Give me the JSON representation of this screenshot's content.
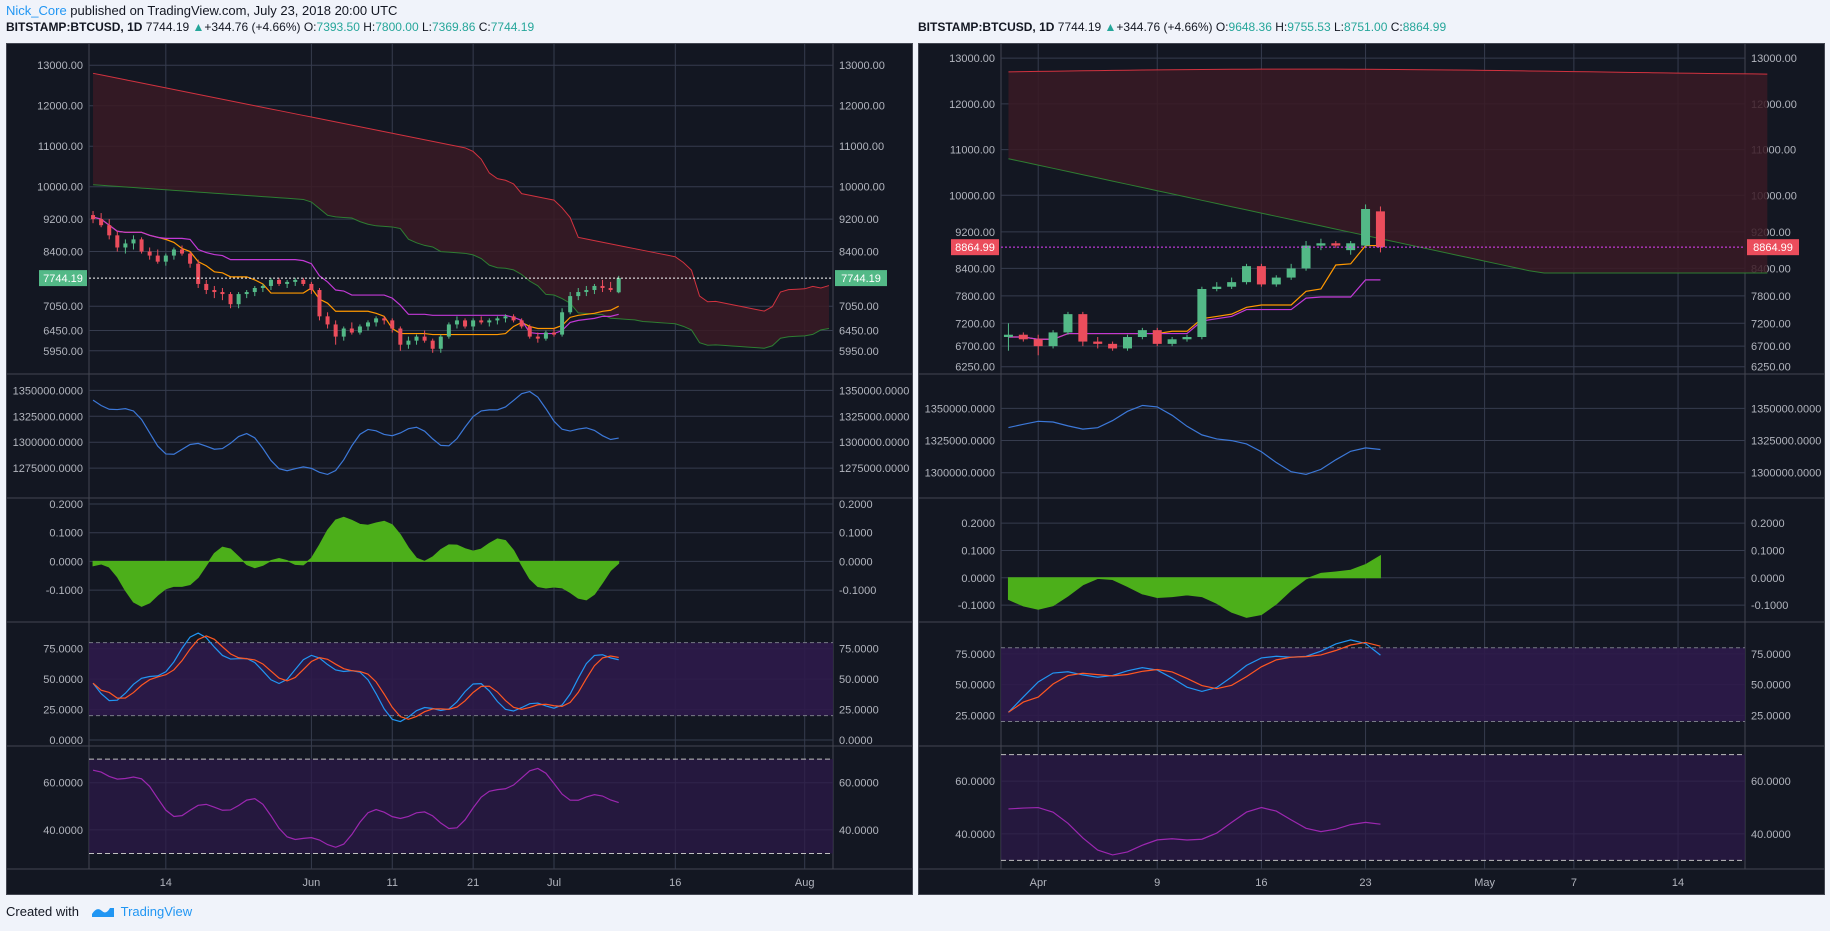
{
  "publish": {
    "user": "Nick_Core",
    "text": " published on TradingView.com, July 23, 2018 20:00 UTC"
  },
  "footer": {
    "created": "Created with",
    "brand": "TradingView"
  },
  "left_header": {
    "symbol": "BITSTAMP:BTCUSD, 1D",
    "last": "7744.19",
    "change": "+344.76 (+4.66%)",
    "o": "7393.50",
    "h": "7800.00",
    "l": "7369.86",
    "c": "7744.19"
  },
  "right_header": {
    "symbol": "BITSTAMP:BTCUSD, 1D",
    "last": "7744.19",
    "change": "+344.76 (+4.66%)",
    "o": "9648.36",
    "h": "9755.53",
    "l": "8751.00",
    "c": "8864.99"
  },
  "labels": {
    "O": "O:",
    "H": "H:",
    "L": "L:",
    "C": "C:"
  },
  "colors": {
    "up": "#53b987",
    "down": "#eb4d5c",
    "bg": "#131722",
    "grid": "#363c4e",
    "cloud": "#3a1a24",
    "tenkan": "#ff9800",
    "kijun": "#c239d6",
    "obv": "#3c78d8",
    "ao": "#4caf1a",
    "stoch_k": "#2196f3",
    "stoch_d": "#ff5722",
    "rsi": "#9c27b0",
    "band": "#2e1a4a"
  },
  "chart_data": [
    {
      "type": "candlestick",
      "id": "left",
      "price_label": "7744.19",
      "x_ticks": [
        {
          "label": "14",
          "t": 9
        },
        {
          "label": "Jun",
          "t": 27
        },
        {
          "label": "11",
          "t": 37
        },
        {
          "label": "21",
          "t": 47
        },
        {
          "label": "Jul",
          "t": 57
        },
        {
          "label": "16",
          "t": 72
        },
        {
          "label": "Aug",
          "t": 88
        }
      ],
      "price_ticks": [
        "13000.00",
        "12000.00",
        "11000.00",
        "10000.00",
        "9200.00",
        "8400.00",
        "7050.00",
        "6450.00",
        "5950.00"
      ],
      "price_ylim": [
        5500,
        13400
      ],
      "candles": [
        [
          9300,
          9400,
          9100,
          9200
        ],
        [
          9200,
          9350,
          9000,
          9050
        ],
        [
          9050,
          9200,
          8700,
          8800
        ],
        [
          8800,
          8900,
          8400,
          8500
        ],
        [
          8500,
          8700,
          8350,
          8600
        ],
        [
          8600,
          8800,
          8450,
          8700
        ],
        [
          8700,
          8750,
          8350,
          8400
        ],
        [
          8400,
          8500,
          8200,
          8300
        ],
        [
          8300,
          8450,
          8100,
          8150
        ],
        [
          8150,
          8350,
          8050,
          8300
        ],
        [
          8300,
          8500,
          8200,
          8450
        ],
        [
          8450,
          8550,
          8300,
          8350
        ],
        [
          8350,
          8400,
          8000,
          8100
        ],
        [
          8100,
          8200,
          7500,
          7600
        ],
        [
          7600,
          7700,
          7350,
          7450
        ],
        [
          7450,
          7550,
          7250,
          7400
        ],
        [
          7400,
          7500,
          7200,
          7350
        ],
        [
          7350,
          7400,
          7000,
          7100
        ],
        [
          7100,
          7400,
          7000,
          7350
        ],
        [
          7350,
          7450,
          7250,
          7400
        ],
        [
          7400,
          7550,
          7300,
          7500
        ],
        [
          7500,
          7600,
          7400,
          7550
        ],
        [
          7550,
          7750,
          7450,
          7700
        ],
        [
          7700,
          7750,
          7550,
          7600
        ],
        [
          7600,
          7700,
          7500,
          7650
        ],
        [
          7650,
          7750,
          7550,
          7700
        ],
        [
          7700,
          7750,
          7550,
          7600
        ],
        [
          7600,
          7650,
          7350,
          7450
        ],
        [
          7450,
          7500,
          6700,
          6800
        ],
        [
          6800,
          6900,
          6500,
          6600
        ],
        [
          6600,
          6700,
          6100,
          6300
        ],
        [
          6300,
          6550,
          6200,
          6500
        ],
        [
          6500,
          6650,
          6350,
          6400
        ],
        [
          6400,
          6600,
          6350,
          6550
        ],
        [
          6550,
          6700,
          6450,
          6650
        ],
        [
          6650,
          6800,
          6550,
          6750
        ],
        [
          6750,
          6800,
          6600,
          6700
        ],
        [
          6700,
          6750,
          6400,
          6500
        ],
        [
          6500,
          6550,
          5950,
          6100
        ],
        [
          6100,
          6300,
          6000,
          6200
        ],
        [
          6200,
          6350,
          6100,
          6300
        ],
        [
          6300,
          6450,
          6150,
          6200
        ],
        [
          6200,
          6250,
          5900,
          6000
        ],
        [
          6000,
          6350,
          5900,
          6300
        ],
        [
          6300,
          6650,
          6250,
          6600
        ],
        [
          6600,
          6800,
          6500,
          6700
        ],
        [
          6700,
          6750,
          6500,
          6550
        ],
        [
          6550,
          6750,
          6450,
          6700
        ],
        [
          6700,
          6800,
          6600,
          6650
        ],
        [
          6650,
          6750,
          6550,
          6700
        ],
        [
          6700,
          6800,
          6600,
          6750
        ],
        [
          6750,
          6850,
          6650,
          6800
        ],
        [
          6800,
          6850,
          6650,
          6700
        ],
        [
          6700,
          6750,
          6500,
          6550
        ],
        [
          6550,
          6600,
          6250,
          6300
        ],
        [
          6300,
          6400,
          6150,
          6250
        ],
        [
          6250,
          6450,
          6200,
          6400
        ],
        [
          6400,
          6500,
          6300,
          6350
        ],
        [
          6350,
          7000,
          6300,
          6900
        ],
        [
          6900,
          7400,
          6850,
          7300
        ],
        [
          7300,
          7500,
          7200,
          7400
        ],
        [
          7400,
          7550,
          7300,
          7450
        ],
        [
          7450,
          7600,
          7350,
          7550
        ],
        [
          7550,
          7700,
          7400,
          7500
        ],
        [
          7500,
          7650,
          7400,
          7450
        ],
        [
          7393.5,
          7800,
          7369.86,
          7744.19
        ]
      ],
      "first_candle_t": 0
    },
    {
      "type": "candlestick",
      "id": "right",
      "price_label": "8864.99",
      "x_ticks": [
        {
          "label": "Apr",
          "t": 2
        },
        {
          "label": "9",
          "t": 10
        },
        {
          "label": "16",
          "t": 17
        },
        {
          "label": "23",
          "t": 24
        },
        {
          "label": "May",
          "t": 32
        },
        {
          "label": "7",
          "t": 38
        },
        {
          "label": "14",
          "t": 45
        }
      ],
      "price_ticks": [
        "13000.00",
        "12000.00",
        "11000.00",
        "10000.00",
        "9200.00",
        "8400.00",
        "7800.00",
        "7200.00",
        "6700.00",
        "6250.00"
      ],
      "price_ylim": [
        6200,
        13200
      ],
      "candles": [
        [
          6900,
          7200,
          6600,
          6950
        ],
        [
          6950,
          7000,
          6800,
          6850
        ],
        [
          6850,
          6950,
          6500,
          6700
        ],
        [
          6700,
          7050,
          6650,
          7000
        ],
        [
          7000,
          7450,
          6950,
          7400
        ],
        [
          7400,
          7450,
          6700,
          6800
        ],
        [
          6800,
          6900,
          6650,
          6750
        ],
        [
          6750,
          6800,
          6600,
          6650
        ],
        [
          6650,
          6950,
          6600,
          6900
        ],
        [
          6900,
          7100,
          6850,
          7050
        ],
        [
          7050,
          7100,
          6700,
          6750
        ],
        [
          6750,
          6900,
          6700,
          6850
        ],
        [
          6850,
          6950,
          6800,
          6900
        ],
        [
          6900,
          8000,
          6850,
          7950
        ],
        [
          7950,
          8100,
          7900,
          8000
        ],
        [
          8000,
          8200,
          7950,
          8100
        ],
        [
          8100,
          8500,
          8050,
          8450
        ],
        [
          8450,
          8500,
          8000,
          8050
        ],
        [
          8050,
          8250,
          8000,
          8200
        ],
        [
          8200,
          8500,
          8150,
          8400
        ],
        [
          8400,
          9000,
          8350,
          8900
        ],
        [
          8900,
          9050,
          8800,
          8950
        ],
        [
          8950,
          9000,
          8850,
          8900
        ],
        [
          8800,
          9000,
          8700,
          8950
        ],
        [
          8900,
          9800,
          8850,
          9700
        ],
        [
          9648.36,
          9755.53,
          8751,
          8864.99
        ]
      ],
      "first_candle_t": 0
    },
    {
      "type": "line",
      "name": "",
      "id": "left-obv",
      "ticks": [
        "1350000.0000",
        "1325000.0000",
        "1300000.0000",
        "1275000.0000"
      ],
      "ylim": [
        1252000,
        1360000
      ]
    },
    {
      "type": "line",
      "name": "",
      "id": "right-obv",
      "ticks": [
        "1350000.0000",
        "1325000.0000",
        "1300000.0000"
      ],
      "ylim": [
        1285000,
        1372000
      ]
    },
    {
      "type": "area",
      "name": "",
      "id": "left-ao",
      "ticks": [
        "0.2000",
        "0.1000",
        "0.0000",
        "-0.1000"
      ],
      "ylim": [
        -0.19,
        0.2
      ]
    },
    {
      "type": "area",
      "name": "",
      "id": "right-ao",
      "ticks": [
        "0.2000",
        "0.1000",
        "0.0000",
        "-0.1000"
      ],
      "ylim": [
        -0.14,
        0.27
      ]
    },
    {
      "type": "line",
      "name": "",
      "id": "left-stoch",
      "ticks": [
        "75.0000",
        "50.0000",
        "25.0000",
        "0.0000"
      ],
      "ylim": [
        0,
        92
      ],
      "band": [
        20,
        80
      ]
    },
    {
      "type": "line",
      "name": "",
      "id": "right-stoch",
      "ticks": [
        "75.0000",
        "50.0000",
        "25.0000"
      ],
      "ylim": [
        5,
        96
      ],
      "band": [
        20,
        80
      ]
    },
    {
      "type": "line",
      "name": "",
      "id": "left-rsi",
      "ticks": [
        "60.0000",
        "40.0000"
      ],
      "ylim": [
        26,
        73
      ],
      "band": [
        30,
        70
      ]
    },
    {
      "type": "line",
      "name": "",
      "id": "right-rsi",
      "ticks": [
        "60.0000",
        "40.0000"
      ],
      "ylim": [
        29,
        71
      ],
      "band": [
        30,
        70
      ]
    }
  ]
}
